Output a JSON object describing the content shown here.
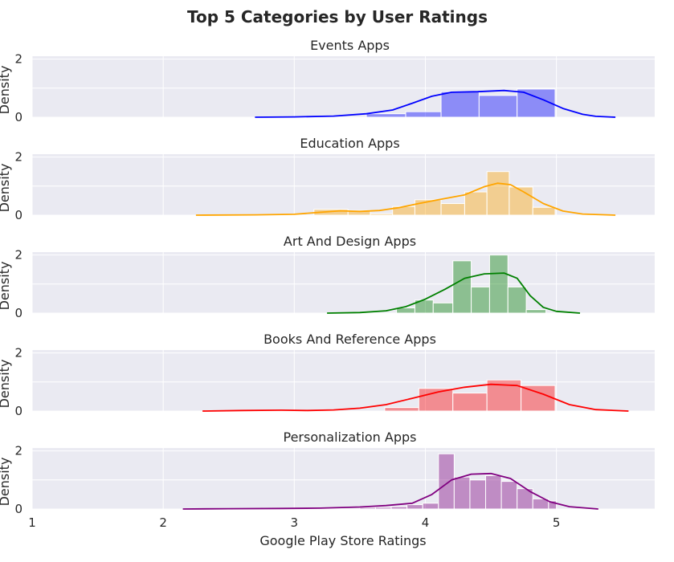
{
  "chart_data": {
    "type": "histogram",
    "title": "Top 5 Categories by User Ratings",
    "xlabel": "Google Play Store Ratings",
    "ylabel": "Density",
    "xlim": [
      1,
      5.75
    ],
    "ylim": [
      0,
      2.1
    ],
    "xticks": [
      "1",
      "2",
      "3",
      "4",
      "5"
    ],
    "yticks": [
      "0",
      "2"
    ],
    "grid": true,
    "panels": [
      {
        "name": "Events Apps",
        "color": "#0000ff",
        "bins": [
          {
            "x0": 3.55,
            "x1": 3.85,
            "density": 0.12
          },
          {
            "x0": 3.85,
            "x1": 4.12,
            "density": 0.19
          },
          {
            "x0": 4.12,
            "x1": 4.41,
            "density": 0.88
          },
          {
            "x0": 4.41,
            "x1": 4.7,
            "density": 0.75
          },
          {
            "x0": 4.7,
            "x1": 4.99,
            "density": 0.97
          }
        ],
        "kde": [
          [
            2.7,
            0
          ],
          [
            3.0,
            0.01
          ],
          [
            3.3,
            0.04
          ],
          [
            3.55,
            0.12
          ],
          [
            3.75,
            0.25
          ],
          [
            3.9,
            0.48
          ],
          [
            4.05,
            0.72
          ],
          [
            4.2,
            0.86
          ],
          [
            4.4,
            0.88
          ],
          [
            4.6,
            0.92
          ],
          [
            4.75,
            0.86
          ],
          [
            4.9,
            0.6
          ],
          [
            5.05,
            0.3
          ],
          [
            5.2,
            0.1
          ],
          [
            5.3,
            0.03
          ],
          [
            5.45,
            0
          ]
        ]
      },
      {
        "name": "Education Apps",
        "color": "#ffa500",
        "bins": [
          {
            "x0": 3.15,
            "x1": 3.41,
            "density": 0.2
          },
          {
            "x0": 3.41,
            "x1": 3.58,
            "density": 0.16
          },
          {
            "x0": 3.58,
            "x1": 3.75,
            "density": 0.05
          },
          {
            "x0": 3.75,
            "x1": 3.92,
            "density": 0.3
          },
          {
            "x0": 3.92,
            "x1": 4.12,
            "density": 0.53
          },
          {
            "x0": 4.12,
            "x1": 4.3,
            "density": 0.4
          },
          {
            "x0": 4.3,
            "x1": 4.47,
            "density": 0.8
          },
          {
            "x0": 4.47,
            "x1": 4.64,
            "density": 1.5
          },
          {
            "x0": 4.64,
            "x1": 4.82,
            "density": 0.97
          },
          {
            "x0": 4.82,
            "x1": 4.99,
            "density": 0.27
          }
        ],
        "kde": [
          [
            2.25,
            0
          ],
          [
            2.7,
            0.01
          ],
          [
            3.0,
            0.03
          ],
          [
            3.2,
            0.1
          ],
          [
            3.35,
            0.15
          ],
          [
            3.5,
            0.13
          ],
          [
            3.65,
            0.16
          ],
          [
            3.8,
            0.26
          ],
          [
            3.95,
            0.4
          ],
          [
            4.1,
            0.53
          ],
          [
            4.3,
            0.7
          ],
          [
            4.45,
            0.98
          ],
          [
            4.55,
            1.1
          ],
          [
            4.65,
            1.05
          ],
          [
            4.75,
            0.8
          ],
          [
            4.9,
            0.4
          ],
          [
            5.05,
            0.14
          ],
          [
            5.2,
            0.04
          ],
          [
            5.45,
            0
          ]
        ]
      },
      {
        "name": "Art And Design Apps",
        "color": "#008000",
        "bins": [
          {
            "x0": 3.78,
            "x1": 3.92,
            "density": 0.18
          },
          {
            "x0": 3.92,
            "x1": 4.06,
            "density": 0.45
          },
          {
            "x0": 4.06,
            "x1": 4.21,
            "density": 0.35
          },
          {
            "x0": 4.21,
            "x1": 4.35,
            "density": 1.8
          },
          {
            "x0": 4.35,
            "x1": 4.49,
            "density": 0.9
          },
          {
            "x0": 4.49,
            "x1": 4.63,
            "density": 2.0
          },
          {
            "x0": 4.63,
            "x1": 4.77,
            "density": 0.9
          },
          {
            "x0": 4.77,
            "x1": 4.92,
            "density": 0.12
          }
        ],
        "kde": [
          [
            3.25,
            0
          ],
          [
            3.5,
            0.02
          ],
          [
            3.7,
            0.08
          ],
          [
            3.85,
            0.22
          ],
          [
            4.0,
            0.48
          ],
          [
            4.15,
            0.82
          ],
          [
            4.3,
            1.2
          ],
          [
            4.45,
            1.35
          ],
          [
            4.6,
            1.38
          ],
          [
            4.7,
            1.2
          ],
          [
            4.8,
            0.6
          ],
          [
            4.9,
            0.2
          ],
          [
            5.0,
            0.06
          ],
          [
            5.18,
            0
          ]
        ]
      },
      {
        "name": "Books And Reference Apps",
        "color": "#ff0000",
        "bins": [
          {
            "x0": 3.69,
            "x1": 3.95,
            "density": 0.12
          },
          {
            "x0": 3.95,
            "x1": 4.21,
            "density": 0.78
          },
          {
            "x0": 4.21,
            "x1": 4.47,
            "density": 0.62
          },
          {
            "x0": 4.47,
            "x1": 4.73,
            "density": 1.07
          },
          {
            "x0": 4.73,
            "x1": 4.99,
            "density": 0.88
          }
        ],
        "kde": [
          [
            2.3,
            0
          ],
          [
            2.6,
            0.02
          ],
          [
            2.9,
            0.03
          ],
          [
            3.1,
            0.02
          ],
          [
            3.3,
            0.04
          ],
          [
            3.5,
            0.1
          ],
          [
            3.7,
            0.22
          ],
          [
            3.9,
            0.44
          ],
          [
            4.1,
            0.66
          ],
          [
            4.3,
            0.82
          ],
          [
            4.5,
            0.92
          ],
          [
            4.7,
            0.88
          ],
          [
            4.9,
            0.58
          ],
          [
            5.1,
            0.22
          ],
          [
            5.3,
            0.05
          ],
          [
            5.55,
            0
          ]
        ]
      },
      {
        "name": "Personalization Apps",
        "color": "#800080",
        "bins": [
          {
            "x0": 3.5,
            "x1": 3.62,
            "density": 0.05
          },
          {
            "x0": 3.62,
            "x1": 3.74,
            "density": 0.06
          },
          {
            "x0": 3.74,
            "x1": 3.86,
            "density": 0.08
          },
          {
            "x0": 3.86,
            "x1": 3.98,
            "density": 0.15
          },
          {
            "x0": 3.98,
            "x1": 4.1,
            "density": 0.2
          },
          {
            "x0": 4.1,
            "x1": 4.22,
            "density": 1.9
          },
          {
            "x0": 4.22,
            "x1": 4.34,
            "density": 1.1
          },
          {
            "x0": 4.34,
            "x1": 4.46,
            "density": 1.0
          },
          {
            "x0": 4.46,
            "x1": 4.58,
            "density": 1.15
          },
          {
            "x0": 4.58,
            "x1": 4.7,
            "density": 0.95
          },
          {
            "x0": 4.7,
            "x1": 4.82,
            "density": 0.7
          },
          {
            "x0": 4.82,
            "x1": 4.94,
            "density": 0.35
          },
          {
            "x0": 4.94,
            "x1": 5.0,
            "density": 0.28
          }
        ],
        "kde": [
          [
            2.15,
            0
          ],
          [
            2.5,
            0.01
          ],
          [
            2.9,
            0.02
          ],
          [
            3.2,
            0.03
          ],
          [
            3.5,
            0.07
          ],
          [
            3.7,
            0.12
          ],
          [
            3.9,
            0.2
          ],
          [
            4.05,
            0.5
          ],
          [
            4.2,
            1.0
          ],
          [
            4.35,
            1.2
          ],
          [
            4.5,
            1.22
          ],
          [
            4.65,
            1.05
          ],
          [
            4.8,
            0.6
          ],
          [
            4.95,
            0.25
          ],
          [
            5.1,
            0.08
          ],
          [
            5.32,
            0
          ]
        ]
      }
    ]
  }
}
